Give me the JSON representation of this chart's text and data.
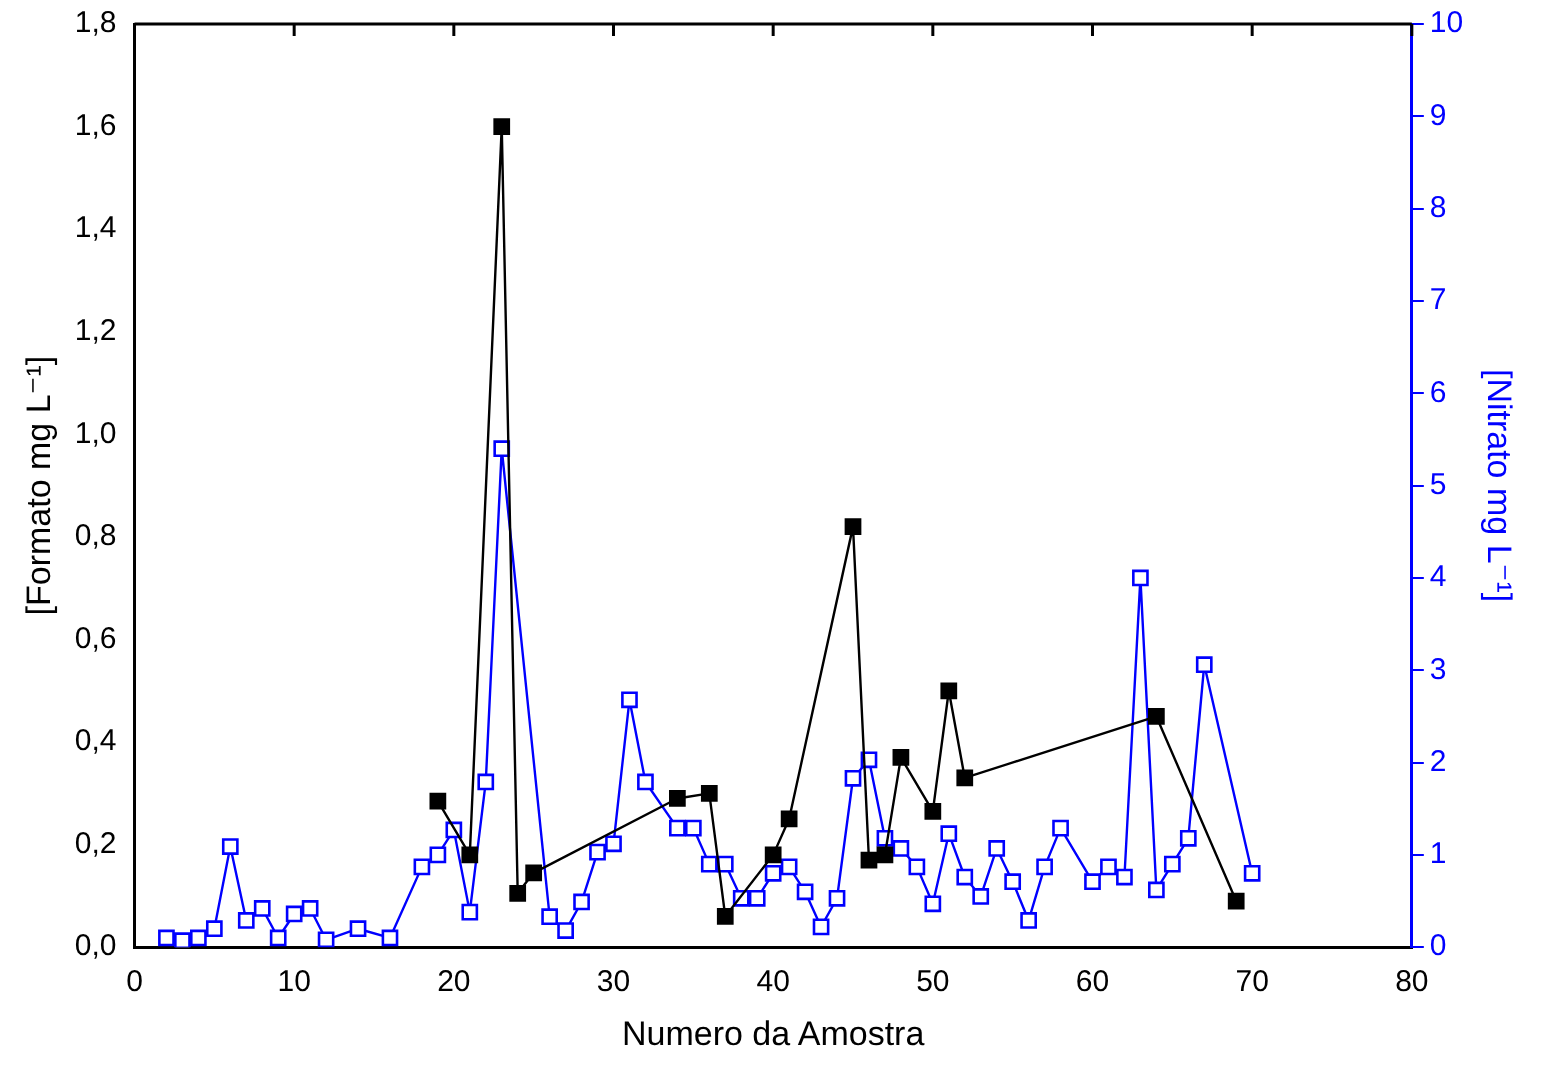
{
  "chart_data": {
    "type": "line",
    "xlabel": "Numero da Amostra",
    "ylabel": "[Formato mg L⁻¹]",
    "y2label": "[Nitrato mg L⁻¹]",
    "xlim": [
      0,
      80
    ],
    "xticks": [
      0,
      10,
      20,
      30,
      40,
      50,
      60,
      70,
      80
    ],
    "ylim": [
      0,
      1.8
    ],
    "yticks": [
      {
        "value": 0,
        "label": "0,0"
      },
      {
        "value": 0.2,
        "label": "0,2"
      },
      {
        "value": 0.4,
        "label": "0,4"
      },
      {
        "value": 0.6,
        "label": "0,6"
      },
      {
        "value": 0.8,
        "label": "0,8"
      },
      {
        "value": 1.0,
        "label": "1,0"
      },
      {
        "value": 1.2,
        "label": "1,2"
      },
      {
        "value": 1.4,
        "label": "1,4"
      },
      {
        "value": 1.6,
        "label": "1,6"
      },
      {
        "value": 1.8,
        "label": "1,8"
      }
    ],
    "y2lim": [
      0,
      10
    ],
    "y2ticks": [
      0,
      1,
      2,
      3,
      4,
      5,
      6,
      7,
      8,
      9,
      10
    ],
    "marker": "square",
    "grid": false,
    "legend": false,
    "series": [
      {
        "color": "#000000",
        "x": [
          19,
          21,
          23,
          24,
          25,
          34,
          36,
          37,
          40,
          41,
          45,
          46,
          47,
          48,
          50,
          51,
          52,
          64,
          69
        ],
        "values": [
          0.285,
          0.18,
          1.6,
          0.105,
          0.145,
          0.29,
          0.3,
          0.06,
          0.18,
          0.25,
          0.82,
          0.17,
          0.18,
          0.37,
          0.265,
          0.5,
          0.33,
          0.45,
          0.09
        ]
      },
      {
        "color": "#0000ff",
        "axis": "y2",
        "x": [
          2,
          3,
          4,
          5,
          6,
          7,
          8,
          9,
          10,
          11,
          12,
          14,
          16,
          18,
          19,
          20,
          21,
          22,
          23,
          26,
          27,
          28,
          29,
          30,
          31,
          32,
          34,
          35,
          36,
          37,
          38,
          39,
          40,
          41,
          42,
          43,
          44,
          45,
          46,
          47,
          48,
          49,
          50,
          51,
          52,
          53,
          54,
          55,
          56,
          57,
          58,
          60,
          61,
          62,
          63,
          64,
          65,
          66,
          67,
          70
        ],
        "values": [
          0.1,
          0.07,
          0.1,
          0.2,
          1.09,
          0.29,
          0.42,
          0.1,
          0.36,
          0.42,
          0.08,
          0.2,
          0.1,
          0.87,
          1.0,
          1.27,
          0.38,
          1.79,
          5.4,
          0.33,
          0.18,
          0.49,
          1.03,
          1.12,
          2.68,
          1.79,
          1.29,
          1.29,
          0.9,
          0.9,
          0.53,
          0.53,
          0.8,
          0.87,
          0.6,
          0.22,
          0.53,
          1.83,
          2.03,
          1.18,
          1.07,
          0.87,
          0.47,
          1.23,
          0.76,
          0.55,
          1.07,
          0.71,
          0.29,
          0.87,
          1.29,
          0.71,
          0.87,
          0.76,
          4.0,
          0.62,
          0.9,
          1.18,
          3.06,
          0.8
        ]
      }
    ]
  }
}
